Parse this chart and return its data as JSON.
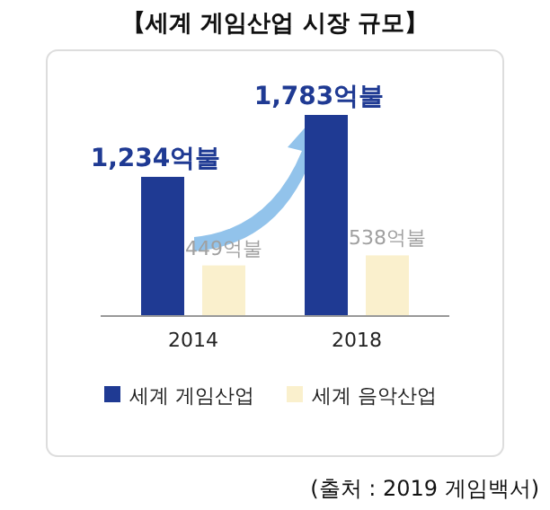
{
  "chart_data": {
    "type": "bar",
    "title": "【세계 게임산업 시장 규모】",
    "categories": [
      "2014",
      "2018"
    ],
    "series": [
      {
        "name": "세계 게임산업",
        "color": "#1f3a93",
        "values": [
          1234,
          1783
        ],
        "value_labels": [
          "1,234억불",
          "1,783억불"
        ]
      },
      {
        "name": "세계 음악산업",
        "color": "#faf0cd",
        "values": [
          449,
          538
        ],
        "value_labels": [
          "449억불",
          "538억불"
        ]
      }
    ],
    "legend": "bottom",
    "annotations": [
      "(출처 : 2019 게임백서)"
    ]
  }
}
